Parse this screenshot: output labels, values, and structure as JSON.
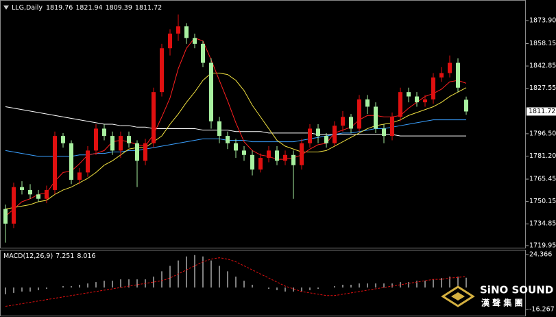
{
  "chart_data": [
    {
      "type": "candlestick",
      "title": "LLG,Daily",
      "open": [
        1745,
        1735,
        1760,
        1758,
        1755,
        1752,
        1758,
        1795,
        1790,
        1765,
        1770,
        1785,
        1800,
        1795,
        1785,
        1795,
        1790,
        1778,
        1790,
        1825,
        1855,
        1865,
        1870,
        1862,
        1858,
        1845,
        1805,
        1795,
        1790,
        1785,
        1782,
        1772,
        1780,
        1785,
        1778,
        1782,
        1775,
        1790,
        1800,
        1795,
        1790,
        1802,
        1808,
        1800,
        1820,
        1815,
        1800,
        1795,
        1808,
        1825,
        1822,
        1818,
        1820,
        1835,
        1838,
        1845,
        1819.76
      ],
      "high": [
        1748,
        1763,
        1764,
        1762,
        1758,
        1761,
        1798,
        1797,
        1792,
        1773,
        1788,
        1803,
        1803,
        1798,
        1798,
        1798,
        1792,
        1793,
        1828,
        1858,
        1868,
        1878,
        1872,
        1865,
        1860,
        1848,
        1808,
        1798,
        1793,
        1788,
        1785,
        1783,
        1788,
        1788,
        1785,
        1785,
        1793,
        1803,
        1803,
        1797,
        1805,
        1812,
        1810,
        1823,
        1823,
        1818,
        1803,
        1811,
        1828,
        1828,
        1825,
        1823,
        1838,
        1842,
        1850,
        1848,
        1821.94
      ],
      "low": [
        1722,
        1732,
        1755,
        1752,
        1750,
        1749,
        1755,
        1787,
        1762,
        1762,
        1767,
        1782,
        1792,
        1782,
        1780,
        1787,
        1760,
        1775,
        1787,
        1822,
        1850,
        1860,
        1858,
        1855,
        1842,
        1800,
        1790,
        1786,
        1780,
        1778,
        1768,
        1770,
        1777,
        1775,
        1775,
        1752,
        1772,
        1787,
        1790,
        1787,
        1788,
        1798,
        1797,
        1798,
        1810,
        1797,
        1790,
        1792,
        1805,
        1818,
        1815,
        1815,
        1817,
        1832,
        1835,
        1825,
        1809.39
      ],
      "close": [
        1735,
        1760,
        1758,
        1755,
        1752,
        1758,
        1795,
        1790,
        1765,
        1770,
        1785,
        1800,
        1795,
        1785,
        1795,
        1790,
        1778,
        1790,
        1825,
        1855,
        1865,
        1870,
        1862,
        1858,
        1845,
        1805,
        1795,
        1790,
        1785,
        1782,
        1772,
        1780,
        1785,
        1778,
        1782,
        1775,
        1790,
        1800,
        1795,
        1790,
        1802,
        1808,
        1800,
        1820,
        1815,
        1800,
        1795,
        1808,
        1825,
        1822,
        1818,
        1820,
        1835,
        1838,
        1845,
        1828,
        1811.72
      ],
      "up_color": "#e01010",
      "down_color": "#a8f0a0",
      "overlays": [
        {
          "color": "#ffffff",
          "values": [
            1815,
            1814,
            1813,
            1812,
            1811,
            1810,
            1809,
            1808,
            1807,
            1806,
            1805,
            1804,
            1803,
            1803,
            1802,
            1802,
            1801,
            1801,
            1800,
            1800,
            1800,
            1800,
            1800,
            1800,
            1799,
            1799,
            1799,
            1799,
            1798,
            1798,
            1798,
            1798,
            1797,
            1797,
            1797,
            1797,
            1797,
            1797,
            1796,
            1796,
            1796,
            1796,
            1796,
            1796,
            1796,
            1796,
            1796,
            1796,
            1795,
            1795,
            1795,
            1795,
            1795,
            1795,
            1795,
            1795,
            1795
          ]
        },
        {
          "color": "#3aa0ff",
          "values": [
            1785,
            1784,
            1783,
            1782,
            1781,
            1781,
            1781,
            1781,
            1781,
            1782,
            1782,
            1783,
            1783,
            1784,
            1784,
            1785,
            1785,
            1786,
            1787,
            1788,
            1789,
            1790,
            1791,
            1792,
            1793,
            1793,
            1793,
            1792,
            1792,
            1792,
            1791,
            1791,
            1791,
            1791,
            1791,
            1791,
            1792,
            1793,
            1794,
            1795,
            1796,
            1797,
            1797,
            1798,
            1799,
            1800,
            1800,
            1801,
            1802,
            1803,
            1804,
            1805,
            1806,
            1806,
            1806,
            1806,
            1806
          ]
        },
        {
          "color": "#f0e040",
          "values": [
            1745,
            1746,
            1747,
            1748,
            1750,
            1751,
            1755,
            1758,
            1760,
            1763,
            1766,
            1770,
            1775,
            1778,
            1782,
            1786,
            1787,
            1787,
            1791,
            1795,
            1803,
            1810,
            1818,
            1825,
            1833,
            1838,
            1838,
            1837,
            1833,
            1826,
            1816,
            1808,
            1800,
            1792,
            1788,
            1786,
            1784,
            1784,
            1784,
            1785,
            1788,
            1791,
            1794,
            1797,
            1800,
            1802,
            1803,
            1804,
            1806,
            1809,
            1811,
            1813,
            1815,
            1818,
            1822,
            1825,
            1828
          ]
        },
        {
          "color": "#ff2020",
          "values": [
            1740,
            1745,
            1750,
            1752,
            1755,
            1756,
            1764,
            1770,
            1771,
            1776,
            1782,
            1783,
            1785,
            1791,
            1792,
            1791,
            1789,
            1788,
            1796,
            1808,
            1821,
            1841,
            1855,
            1862,
            1860,
            1847,
            1833,
            1819,
            1804,
            1791,
            1785,
            1782,
            1781,
            1779,
            1779,
            1780,
            1782,
            1786,
            1789,
            1790,
            1797,
            1799,
            1801,
            1806,
            1809,
            1809,
            1808,
            1808,
            1809,
            1814,
            1818,
            1822,
            1824,
            1827,
            1832,
            1833,
            1831
          ]
        }
      ],
      "ylim": [
        1718.07,
        1886.57
      ],
      "yticks": [
        {
          "value": 1873.9,
          "label": "1873.90"
        },
        1858.15,
        1842.85,
        1827.55,
        {
          "value": 1796.5,
          "label": "1796.50"
        },
        {
          "value": 1781.2,
          "label": "1781.20"
        },
        1765.45,
        1750.15,
        1734.85,
        1719.95
      ],
      "grid": false
    },
    {
      "type": "macd",
      "title": "MACD(12,26,9)",
      "histogram": {
        "color": "#ffffff",
        "values": [
          -5,
          -4,
          -3,
          -3,
          -2,
          -1,
          0,
          1,
          1,
          2,
          3,
          4,
          5,
          5,
          6,
          6,
          6,
          6,
          8,
          12,
          16,
          20,
          23,
          24,
          23,
          20,
          16,
          12,
          8,
          5,
          2,
          0,
          -1,
          -2,
          -3,
          -3,
          -3,
          -2,
          -1,
          0,
          1,
          2,
          2,
          3,
          3,
          3,
          3,
          3,
          4,
          4,
          5,
          5,
          6,
          7,
          8,
          8,
          7.251
        ]
      },
      "signal": {
        "color": "#e01010",
        "values": [
          -14,
          -13,
          -12,
          -11,
          -10,
          -9,
          -8,
          -7,
          -6,
          -5,
          -4,
          -3,
          -2,
          -1,
          0,
          1,
          2,
          3,
          4,
          5,
          7,
          10,
          13,
          16,
          19,
          21,
          22,
          21,
          19,
          16,
          13,
          10,
          7,
          4,
          1,
          -1,
          -3,
          -4,
          -5,
          -6,
          -6,
          -5,
          -4,
          -3,
          -2,
          -1,
          0,
          1,
          2,
          3,
          4,
          5,
          6,
          6,
          7,
          7.5,
          8.016
        ]
      },
      "ylim": [
        -16.267,
        24.366
      ],
      "yticks": [
        24.366,
        -16.267
      ]
    }
  ],
  "watermark": {
    "name": "SiNO SOUND",
    "subtitle": "漢 聲 集 團"
  }
}
